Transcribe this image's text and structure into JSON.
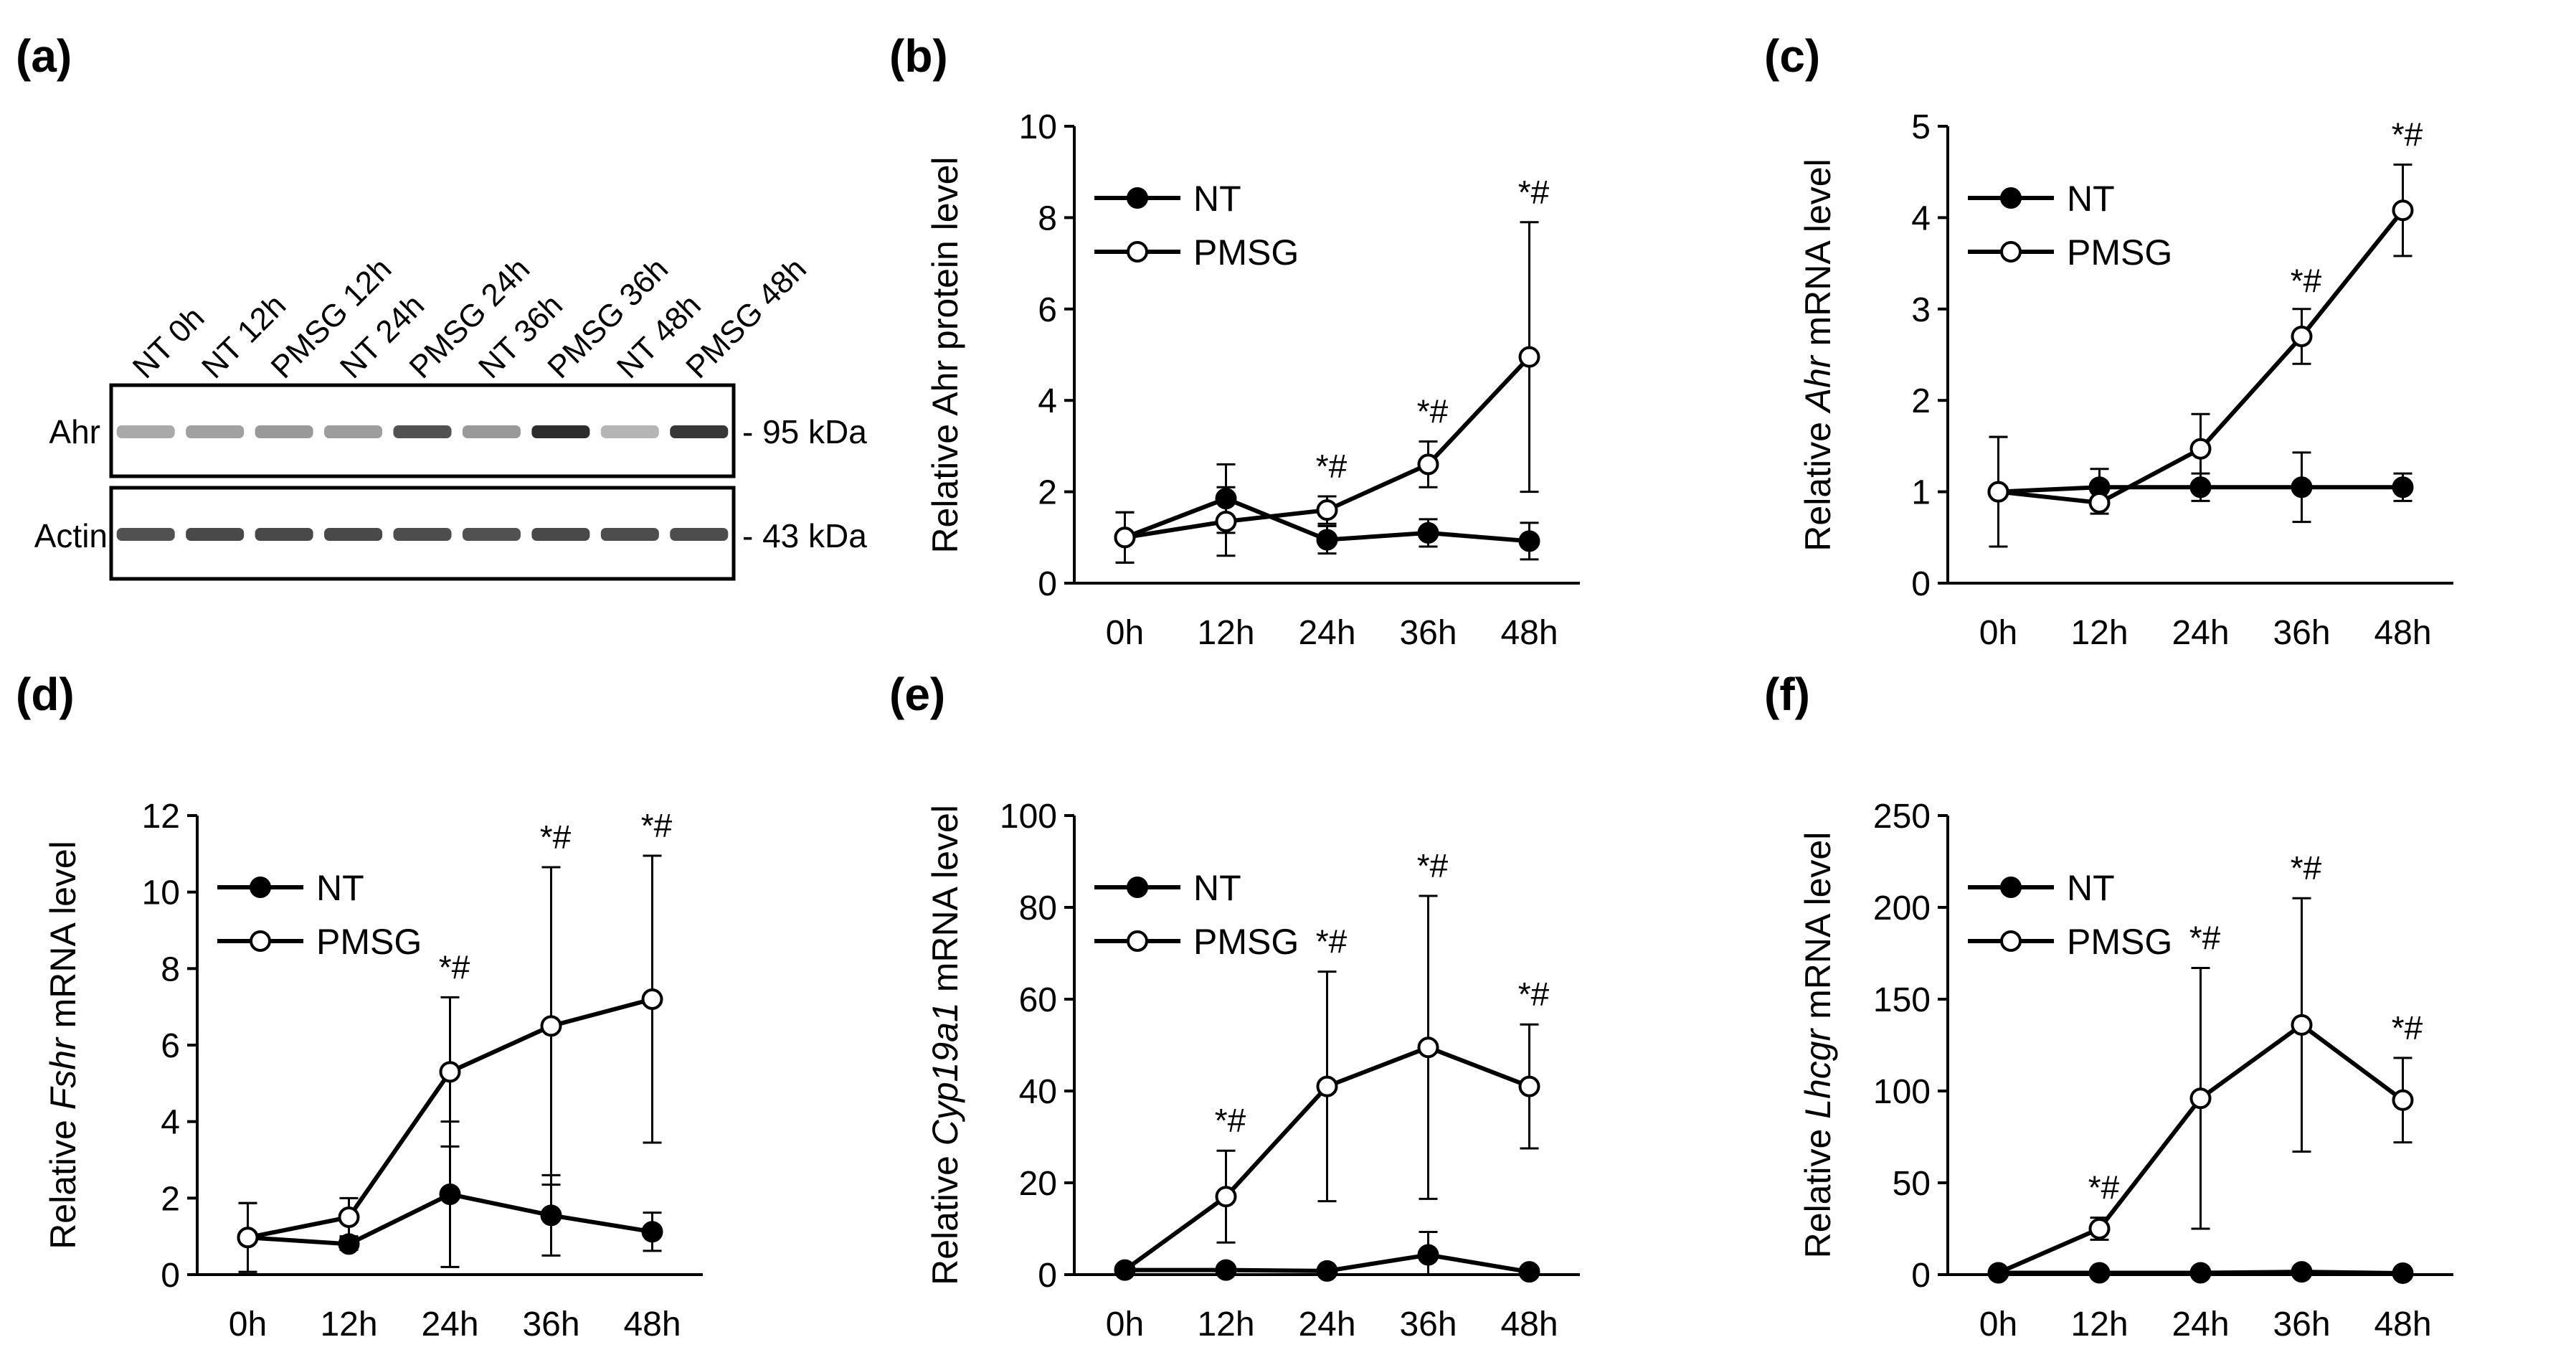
{
  "figure": {
    "panel_labels": [
      "(a)",
      "(b)",
      "(c)",
      "(d)",
      "(e)",
      "(f)"
    ],
    "colors": {
      "line": "#000000",
      "open_marker_fill": "#ffffff",
      "closed_marker_fill": "#000000",
      "background": "#ffffff"
    }
  },
  "blot": {
    "lanes": [
      "NT 0h",
      "NT 12h",
      "PMSG 12h",
      "NT 24h",
      "PMSG 24h",
      "NT 36h",
      "PMSG 36h",
      "NT 48h",
      "PMSG 48h"
    ],
    "rows": [
      {
        "protein": "Ahr",
        "size": "- 95 kDa",
        "intensity": [
          0.28,
          0.32,
          0.36,
          0.34,
          0.72,
          0.36,
          0.9,
          0.22,
          0.85
        ]
      },
      {
        "protein": "Actin",
        "size": "- 43 kDa",
        "intensity": [
          0.72,
          0.76,
          0.76,
          0.76,
          0.74,
          0.72,
          0.76,
          0.74,
          0.74
        ]
      }
    ]
  },
  "chart_data": [
    {
      "panel": "(b)",
      "type": "line",
      "ylabel_parts": [
        "Relative Ahr protein level"
      ],
      "ylim": [
        0,
        10
      ],
      "yticks": [
        0,
        2,
        4,
        6,
        8,
        10
      ],
      "categories": [
        "0h",
        "12h",
        "24h",
        "36h",
        "48h"
      ],
      "legend": [
        "NT",
        "PMSG"
      ],
      "series": [
        {
          "name": "NT",
          "marker": "closed",
          "values": [
            1.0,
            1.85,
            0.95,
            1.1,
            0.92
          ],
          "err": [
            0.55,
            0.75,
            0.3,
            0.3,
            0.4
          ]
        },
        {
          "name": "PMSG",
          "marker": "open",
          "x_start": 0,
          "values": [
            1.0,
            1.35,
            1.6,
            2.6,
            4.95
          ],
          "err": [
            0.55,
            0.75,
            0.3,
            0.5,
            2.95
          ]
        }
      ],
      "annotations": [
        {
          "index": 2,
          "y": 1.9,
          "text": "*#"
        },
        {
          "index": 3,
          "y": 3.1,
          "text": "*#"
        },
        {
          "index": 4,
          "y": 7.9,
          "text": "*#"
        }
      ]
    },
    {
      "panel": "(c)",
      "type": "line",
      "ylabel_parts": [
        "Relative ",
        "Ahr",
        " mRNA level"
      ],
      "ylim": [
        0,
        5
      ],
      "yticks": [
        0,
        1,
        2,
        3,
        4,
        5
      ],
      "categories": [
        "0h",
        "12h",
        "24h",
        "36h",
        "48h"
      ],
      "legend": [
        "NT",
        "PMSG"
      ],
      "series": [
        {
          "name": "NT",
          "marker": "closed",
          "values": [
            1.0,
            1.05,
            1.05,
            1.05,
            1.05
          ],
          "err": [
            0.6,
            0.2,
            0.15,
            0.38,
            0.15
          ]
        },
        {
          "name": "PMSG",
          "marker": "open",
          "x_start": 0,
          "values": [
            1.0,
            0.88,
            1.47,
            2.7,
            4.08
          ],
          "err": [
            0.6,
            0.12,
            0.38,
            0.3,
            0.5
          ]
        }
      ],
      "annotations": [
        {
          "index": 3,
          "y": 2.98,
          "text": "*#"
        },
        {
          "index": 4,
          "y": 4.58,
          "text": "*#"
        }
      ]
    },
    {
      "panel": "(d)",
      "type": "line",
      "ylabel_parts": [
        "Relative ",
        "Fshr",
        "  mRNA level"
      ],
      "ylim": [
        0,
        12
      ],
      "yticks": [
        0,
        2,
        4,
        6,
        8,
        10,
        12
      ],
      "categories": [
        "0h",
        "12h",
        "24h",
        "36h",
        "48h"
      ],
      "legend": [
        "NT",
        "PMSG"
      ],
      "series": [
        {
          "name": "NT",
          "marker": "closed",
          "values": [
            0.97,
            0.8,
            2.1,
            1.55,
            1.12
          ],
          "err": [
            0.9,
            0.15,
            1.9,
            1.05,
            0.5
          ]
        },
        {
          "name": "PMSG",
          "marker": "open",
          "x_start": 0,
          "values": [
            0.97,
            1.5,
            5.3,
            6.5,
            7.2
          ],
          "err": [
            0.9,
            0.5,
            1.95,
            4.15,
            3.75
          ]
        }
      ],
      "annotations": [
        {
          "index": 2,
          "y": 7.25,
          "text": "*#"
        },
        {
          "index": 3,
          "y": 10.65,
          "text": "*#"
        },
        {
          "index": 4,
          "y": 10.95,
          "text": "*#"
        }
      ]
    },
    {
      "panel": "(e)",
      "type": "line",
      "ylabel_parts": [
        "Relative ",
        "Cyp19a1",
        " mRNA level"
      ],
      "ylim": [
        0,
        100
      ],
      "yticks": [
        0,
        20,
        40,
        60,
        80,
        100
      ],
      "categories": [
        "0h",
        "12h",
        "24h",
        "36h",
        "48h"
      ],
      "legend": [
        "NT",
        "PMSG"
      ],
      "series": [
        {
          "name": "NT",
          "marker": "closed",
          "values": [
            1.0,
            1.0,
            0.8,
            4.3,
            0.6
          ],
          "err": [
            0.3,
            0.3,
            0.3,
            5.0,
            0.3
          ]
        },
        {
          "name": "PMSG",
          "marker": "open",
          "x_start": 1,
          "values": [
            1.0,
            17.0,
            41.0,
            49.5,
            41.0
          ],
          "err": [
            0.3,
            10.0,
            25.0,
            33.0,
            13.5
          ]
        }
      ],
      "annotations": [
        {
          "index": 1,
          "y": 27.0,
          "text": "*#"
        },
        {
          "index": 2,
          "y": 66.0,
          "text": "*#"
        },
        {
          "index": 3,
          "y": 82.5,
          "text": "*#"
        },
        {
          "index": 4,
          "y": 54.5,
          "text": "*#"
        }
      ]
    },
    {
      "panel": "(f)",
      "type": "line",
      "ylabel_parts": [
        "Relative ",
        "Lhcgr",
        " mRNA level"
      ],
      "ylim": [
        0,
        250
      ],
      "yticks": [
        0,
        50,
        100,
        150,
        200,
        250
      ],
      "categories": [
        "0h",
        "12h",
        "24h",
        "36h",
        "48h"
      ],
      "legend": [
        "NT",
        "PMSG"
      ],
      "series": [
        {
          "name": "NT",
          "marker": "closed",
          "values": [
            1.0,
            1.0,
            1.0,
            1.5,
            0.8
          ],
          "err": [
            0.5,
            0.5,
            0.5,
            0.8,
            0.5
          ]
        },
        {
          "name": "PMSG",
          "marker": "open",
          "x_start": 1,
          "values": [
            1.0,
            25.0,
            96.0,
            136.0,
            95.0
          ],
          "err": [
            0.5,
            6.0,
            71.0,
            69.0,
            23.0
          ]
        }
      ],
      "annotations": [
        {
          "index": 1,
          "y": 31.0,
          "text": "*#"
        },
        {
          "index": 2,
          "y": 167.0,
          "text": "*#"
        },
        {
          "index": 3,
          "y": 205.0,
          "text": "*#"
        },
        {
          "index": 4,
          "y": 118.0,
          "text": "*#"
        }
      ]
    }
  ]
}
